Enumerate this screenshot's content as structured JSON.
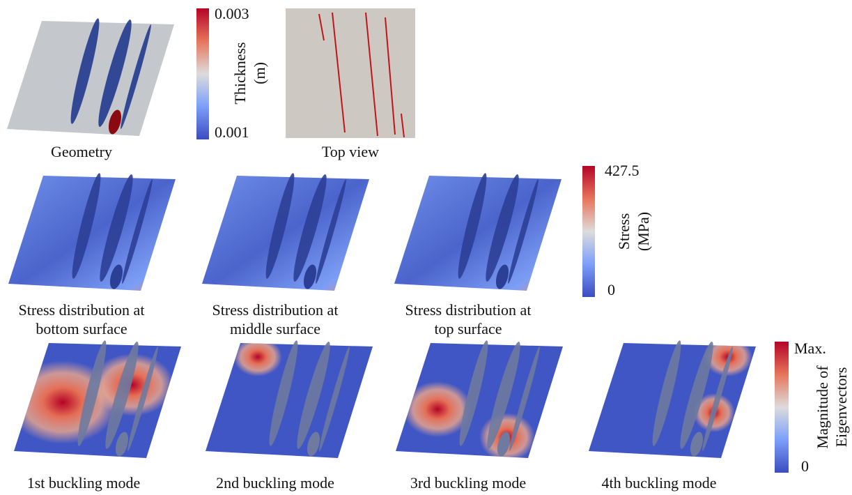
{
  "panels": [
    {
      "caption": [
        "Geometry"
      ]
    },
    {
      "caption": [
        "Top view"
      ]
    },
    {
      "caption": [
        "Stress distribution at",
        "bottom surface"
      ]
    },
    {
      "caption": [
        "Stress distribution at",
        "middle surface"
      ]
    },
    {
      "caption": [
        "Stress distribution at",
        "top surface"
      ]
    },
    {
      "caption": [
        "1st buckling mode"
      ]
    },
    {
      "caption": [
        "2nd buckling mode"
      ]
    },
    {
      "caption": [
        "3rd buckling mode"
      ]
    },
    {
      "caption": [
        "4th buckling mode"
      ]
    }
  ],
  "colorbars": [
    {
      "title": [
        "Thickness",
        "(m)"
      ],
      "max": "0.003",
      "min": "0.001"
    },
    {
      "title": [
        "Stress",
        "(MPa)"
      ],
      "max": "427.5",
      "min": "0"
    },
    {
      "title": [
        "Magnitude of",
        "Eigenvectors"
      ],
      "max": "Max.",
      "min": "0"
    }
  ]
}
